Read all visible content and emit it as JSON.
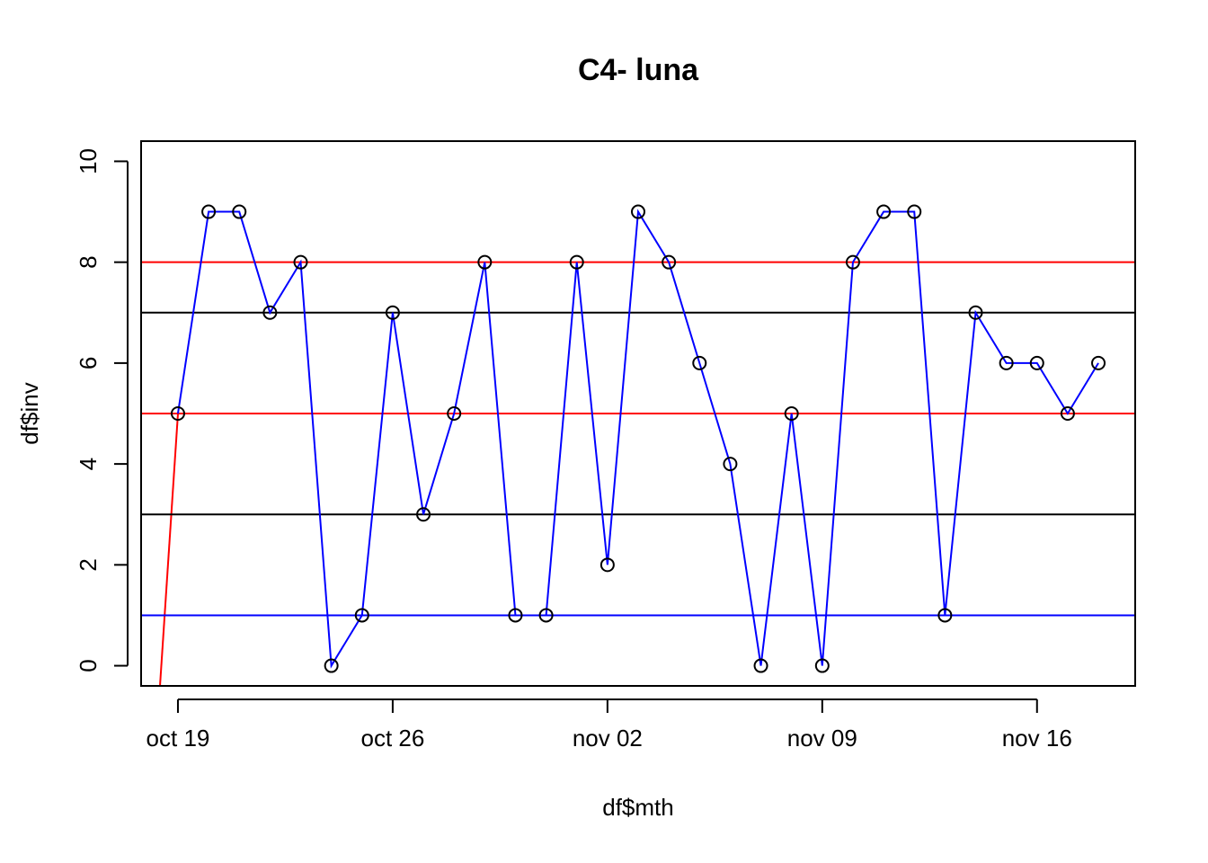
{
  "chart_data": {
    "type": "line",
    "title": "C4- luna",
    "x_label": "df$mth",
    "y_label": "df$inv",
    "x": [
      "oct 19",
      "oct 20",
      "oct 21",
      "oct 22",
      "oct 23",
      "oct 24",
      "oct 25",
      "oct 26",
      "oct 27",
      "oct 28",
      "oct 29",
      "oct 30",
      "oct 31",
      "nov 01",
      "nov 02",
      "nov 03",
      "nov 04",
      "nov 05",
      "nov 06",
      "nov 07",
      "nov 08",
      "nov 09",
      "nov 10",
      "nov 11",
      "nov 12",
      "nov 13",
      "nov 14",
      "nov 15",
      "nov 16",
      "nov 17",
      "nov 18"
    ],
    "series": [
      {
        "color": "#0000ff",
        "values": [
          5,
          9,
          9,
          7,
          8,
          0,
          1,
          7,
          3,
          5,
          8,
          1,
          1,
          8,
          2,
          9,
          8,
          6,
          4,
          0,
          5,
          0,
          8,
          9,
          9,
          1,
          7,
          6,
          6,
          5,
          6
        ]
      }
    ],
    "xlim": [
      "oct 19",
      "nov 18"
    ],
    "xticks": [
      "oct 19",
      "oct 26",
      "nov 02",
      "nov 09",
      "nov 16"
    ],
    "ylim": [
      -0.4,
      10.4
    ],
    "yticks": [
      0,
      2,
      4,
      6,
      8,
      10
    ],
    "hlines": [
      {
        "value": 8,
        "color": "#ff0000"
      },
      {
        "value": 7,
        "color": "#000000"
      },
      {
        "value": 5,
        "color": "#ff0000"
      },
      {
        "value": 3,
        "color": "#000000"
      },
      {
        "value": 1,
        "color": "#0000ff"
      }
    ]
  }
}
